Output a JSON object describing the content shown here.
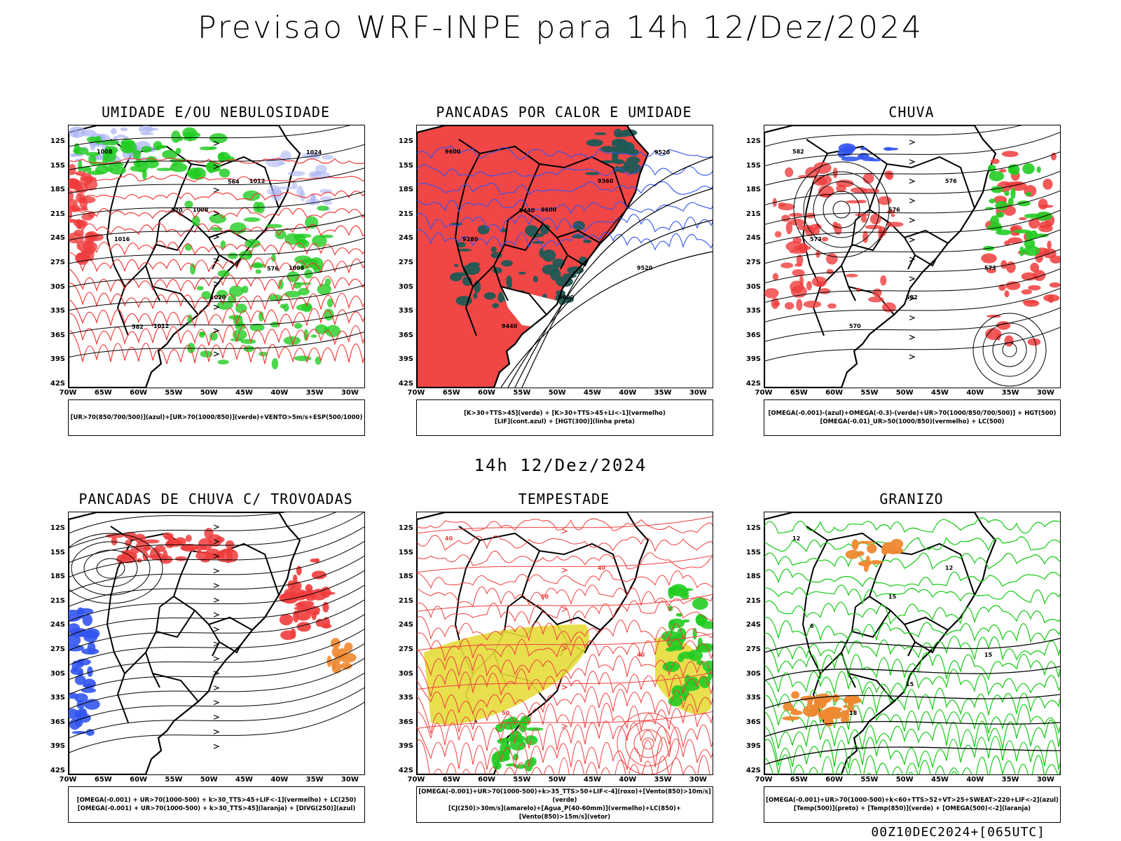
{
  "title": "Previsao WRF-INPE  para 14h 12/Dez/2024",
  "mid_time": "14h 12/Dez/2024",
  "footer": "00Z10DEC2024+[065UTC]",
  "lat_labels": [
    "12S",
    "15S",
    "18S",
    "21S",
    "24S",
    "27S",
    "30S",
    "33S",
    "36S",
    "39S",
    "42S"
  ],
  "lon_labels": [
    "70W",
    "65W",
    "60W",
    "55W",
    "50W",
    "45W",
    "40W",
    "35W",
    "30W"
  ],
  "colors": {
    "red": "#ef3c3c",
    "green": "#22cc22",
    "blue": "#3355ee",
    "lavender": "#aab4f4",
    "teal": "#1f5a55",
    "yellow": "#e6dc3a",
    "orange": "#ee8830",
    "purple": "#aa22cc"
  },
  "panels": [
    {
      "title": "UMIDADE E/OU NEBULOSIDADE",
      "legend": [
        "[UR>70(850/700/500)](azul)+[UR>70(1000/850)](verde)+VENTO>5m/s+ESP(500/1000)"
      ],
      "contours": [
        "1008",
        "1008",
        "1008",
        "1012",
        "1012",
        "1016",
        "1020",
        "1024",
        "570",
        "576",
        "582",
        "564"
      ]
    },
    {
      "title": "PANCADAS POR CALOR E UMIDADE",
      "legend": [
        "[K>30+TTS>45](verde) + [K>30+TTS>45+LI<-1](vermelho)",
        "[LIF](cont.azul) + [HGT(300)](linha preta)"
      ],
      "contours": [
        "9600",
        "9600",
        "9520",
        "9440",
        "9360",
        "9280",
        "9600",
        "9520",
        "9440"
      ]
    },
    {
      "title": "CHUVA",
      "legend": [
        "[OMEGA(-0.001)-(azul)+OMEGA(-0.3)-(verde)+UR>70(1000/850/700/500)] + HGT(500)",
        "[OMEGA(-0.01)_UR>50(1000/850)(vermelho) + LC(500)"
      ],
      "contours": [
        "582",
        "576",
        "573",
        "570",
        "576",
        "573",
        "582"
      ]
    },
    {
      "title": "PANCADAS DE CHUVA C/ TROVOADAS",
      "legend": [
        "[OMEGA(-0.001) + UR>70(1000-500) + k>30_TTS>45+LIF<-1](vermelho) + LC(250)",
        "[OMEGA(-0.001) + UR>70(1000-500) + k>30_TTS>45](laranja) + [DIVG(250)](azul)"
      ],
      "contours": []
    },
    {
      "title": "TEMPESTADE",
      "legend": [
        "[OMEGA(-0.001)+UR>70(1000-500)+k>35_TTS>50+LIF<-4](roxo)+[Vento(850)>10m/s](verde)",
        "[CJ(250)>30m/s](amarelo)+[Agua_P(40-60mm)](vermelho)+LC(850)+[Vento(850)>15m/s](vetor)"
      ],
      "contours": [
        "40",
        "50",
        "40",
        "50",
        "40"
      ]
    },
    {
      "title": "GRANIZO",
      "legend": [
        "[OMEGA(-0.001)+UR>70(1000-500)+k<60+TTS>52+VT>25+SWEAT>220+LIF<-2](azul)",
        "[Temp(500)](preto) + [Temp(850)](verde) + [OMEGA(500)<-2](laranja)"
      ],
      "contours": [
        "12",
        "15",
        "15",
        "18",
        "12",
        "6",
        "15"
      ]
    }
  ]
}
